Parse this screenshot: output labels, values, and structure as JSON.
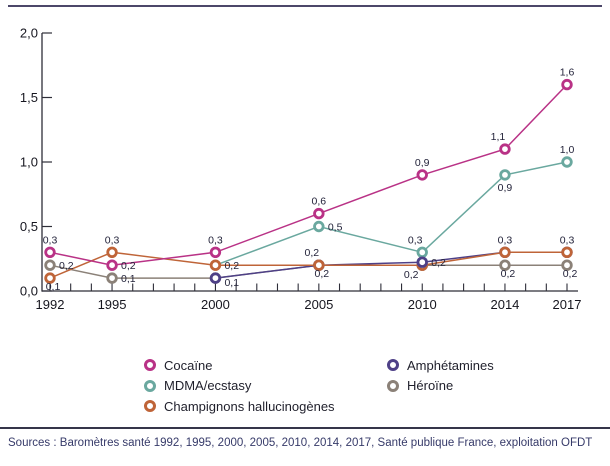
{
  "source_note": "Sources : Baromètres santé 1992, 1995, 2000, 2005, 2010, 2014, 2017, Santé publique France, exploitation OFDT",
  "chart_data": {
    "type": "line",
    "x_years": [
      1992,
      1995,
      2000,
      2005,
      2010,
      2014,
      2017
    ],
    "x_tick_labels": [
      "1992",
      "1995",
      "2000",
      "2005",
      "2010",
      "2014",
      "2017"
    ],
    "xlim": [
      1992,
      2017
    ],
    "ylim": [
      0,
      2
    ],
    "grid": false,
    "legend_position": "bottom",
    "y_ticks": [
      {
        "v": 0,
        "label": "0,0"
      },
      {
        "v": 0.5,
        "label": "0,5"
      },
      {
        "v": 1,
        "label": "1,0"
      },
      {
        "v": 1.5,
        "label": "1,5"
      },
      {
        "v": 2,
        "label": "2,0"
      }
    ],
    "series": [
      {
        "name": "Héroïne",
        "key": "heroine",
        "color": "#8b8178",
        "values": [
          0.2,
          0.1,
          0.1,
          0.2,
          0.2,
          0.2,
          0.2
        ]
      },
      {
        "name": "Amphétamines",
        "key": "amphetamines",
        "color": "#4e4087",
        "values": [
          null,
          null,
          0.1,
          0.2,
          0.2,
          0.3,
          0.3
        ]
      },
      {
        "name": "Champignons hallucinogènes",
        "key": "champignons",
        "color": "#bf6438",
        "values": [
          0.1,
          0.3,
          0.2,
          0.2,
          0.2,
          0.3,
          0.3
        ]
      },
      {
        "name": "MDMA/ecstasy",
        "key": "mdma",
        "color": "#6aa89f",
        "values": [
          null,
          null,
          0.2,
          0.5,
          0.3,
          0.9,
          1.0
        ]
      },
      {
        "name": "Cocaïne",
        "key": "cocaine",
        "color": "#b93286",
        "values": [
          0.3,
          0.2,
          0.3,
          0.6,
          0.9,
          1.1,
          1.6
        ]
      }
    ],
    "point_labels": [
      {
        "series": "cocaine",
        "xi": 0,
        "text": "0,3",
        "pos": "above"
      },
      {
        "series": "heroine",
        "xi": 0,
        "text": "0,2",
        "pos": "right"
      },
      {
        "series": "champignons",
        "xi": 0,
        "text": "0,1",
        "pos": "below-tight"
      },
      {
        "series": "champignons",
        "xi": 1,
        "text": "0,3",
        "pos": "above"
      },
      {
        "series": "cocaine",
        "xi": 1,
        "text": "0,2",
        "pos": "right"
      },
      {
        "series": "heroine",
        "xi": 1,
        "text": "0,1",
        "pos": "right"
      },
      {
        "series": "cocaine",
        "xi": 2,
        "text": "0,3",
        "pos": "above"
      },
      {
        "series": "champignons",
        "xi": 2,
        "text": "0,2",
        "pos": "right"
      },
      {
        "series": "amphetamines",
        "xi": 2,
        "text": "0,1",
        "pos": "right-below"
      },
      {
        "series": "cocaine",
        "xi": 3,
        "text": "0,6",
        "pos": "above"
      },
      {
        "series": "mdma",
        "xi": 3,
        "text": "0,5",
        "pos": "right"
      },
      {
        "series": "champignons",
        "xi": 3,
        "text": "0,2",
        "pos": "above-left"
      },
      {
        "series": "heroine",
        "xi": 3,
        "text": "0,2",
        "pos": "below-tight"
      },
      {
        "series": "cocaine",
        "xi": 4,
        "text": "0,9",
        "pos": "above"
      },
      {
        "series": "mdma",
        "xi": 4,
        "text": "0,3",
        "pos": "above-left"
      },
      {
        "series": "amphetamines",
        "xi": 4,
        "text": "0,2",
        "pos": "right"
      },
      {
        "series": "champignons",
        "xi": 4,
        "text": "0,2",
        "pos": "below-left"
      },
      {
        "series": "cocaine",
        "xi": 5,
        "text": "1,1",
        "pos": "above-left"
      },
      {
        "series": "mdma",
        "xi": 5,
        "text": "0,9",
        "pos": "below"
      },
      {
        "series": "champignons",
        "xi": 5,
        "text": "0,3",
        "pos": "above"
      },
      {
        "series": "heroine",
        "xi": 5,
        "text": "0,2",
        "pos": "below-tight"
      },
      {
        "series": "cocaine",
        "xi": 6,
        "text": "1,6",
        "pos": "above"
      },
      {
        "series": "mdma",
        "xi": 6,
        "text": "1,0",
        "pos": "above"
      },
      {
        "series": "champignons",
        "xi": 6,
        "text": "0,3",
        "pos": "above"
      },
      {
        "series": "heroine",
        "xi": 6,
        "text": "0,2",
        "pos": "below-tight"
      }
    ]
  },
  "legend": {
    "columns": [
      [
        {
          "label": "Cocaïne",
          "key": "cocaine"
        },
        {
          "label": "MDMA/ecstasy",
          "key": "mdma"
        },
        {
          "label": "Champignons hallucinogènes",
          "key": "champignons"
        }
      ],
      [
        {
          "label": "Amphétamines",
          "key": "amphetamines"
        },
        {
          "label": "Héroïne",
          "key": "heroine"
        }
      ]
    ]
  }
}
